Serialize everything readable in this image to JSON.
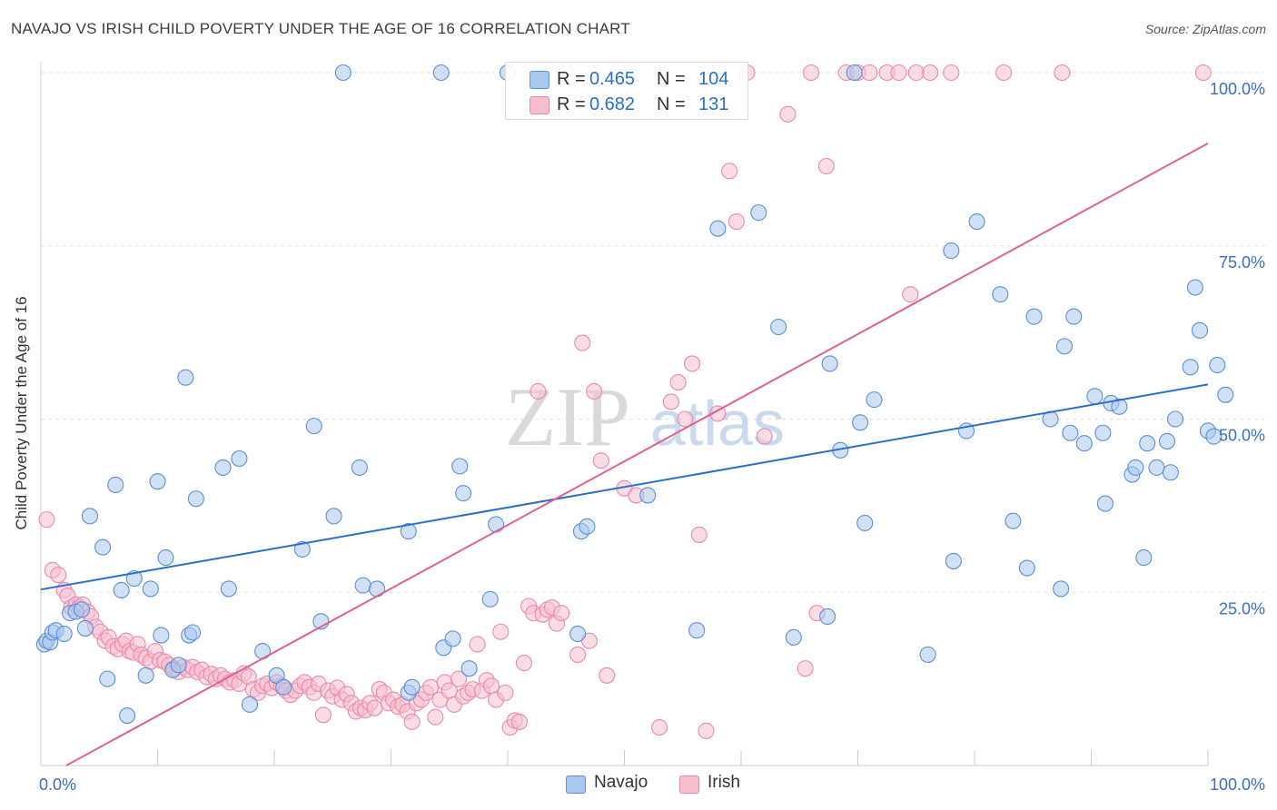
{
  "title": "NAVAJO VS IRISH CHILD POVERTY UNDER THE AGE OF 16 CORRELATION CHART",
  "source": "Source: ZipAtlas.com",
  "watermark": {
    "zip": "ZIP",
    "atlas": "atlas"
  },
  "legend": {
    "navajo": {
      "r_label": "R =",
      "r_value": "0.465",
      "n_label": "N =",
      "n_value": "104"
    },
    "irish": {
      "r_label": "R =",
      "r_value": "0.682",
      "n_label": "N =",
      "n_value": "131"
    }
  },
  "bottom_legend": {
    "navajo": "Navajo",
    "irish": "Irish"
  },
  "colors": {
    "navajo_fill": "#a9c8ef",
    "navajo_stroke": "#5b8fd6",
    "navajo_line": "#2b6fcc",
    "irish_fill": "#f6bfd0",
    "irish_stroke": "#ea8aa8",
    "irish_line": "#e0628e",
    "tick_text": "#3a6fc4",
    "grid": "#e2e2e2"
  },
  "chart_data": {
    "type": "scatter",
    "title": "NAVAJO VS IRISH CHILD POVERTY UNDER THE AGE OF 16 CORRELATION CHART",
    "xlabel": "",
    "ylabel": "Child Poverty Under the Age of 16",
    "xlim": [
      0,
      100
    ],
    "ylim": [
      0,
      100
    ],
    "x_tick_labels": [
      {
        "value": 0,
        "label": "0.0%"
      },
      {
        "value": 100,
        "label": "100.0%"
      }
    ],
    "y_tick_labels": [
      {
        "value": 25,
        "label": "25.0%"
      },
      {
        "value": 50,
        "label": "50.0%"
      },
      {
        "value": 75,
        "label": "75.0%"
      },
      {
        "value": 100,
        "label": "100.0%"
      }
    ],
    "grid": true,
    "legend_position": "top-center",
    "series": [
      {
        "name": "Navajo",
        "trend": {
          "x": [
            0,
            100
          ],
          "y": [
            25.4,
            55.0
          ]
        },
        "points": [
          [
            0.3,
            17.5
          ],
          [
            0.5,
            18.0
          ],
          [
            0.8,
            17.8
          ],
          [
            1.0,
            19.2
          ],
          [
            1.3,
            19.5
          ],
          [
            2.0,
            19.0
          ],
          [
            2.5,
            22.0
          ],
          [
            3.0,
            22.2
          ],
          [
            3.5,
            22.5
          ],
          [
            3.8,
            19.8
          ],
          [
            4.2,
            36.0
          ],
          [
            5.3,
            31.5
          ],
          [
            5.7,
            12.5
          ],
          [
            6.4,
            40.5
          ],
          [
            6.9,
            25.3
          ],
          [
            7.4,
            7.2
          ],
          [
            8.0,
            27.0
          ],
          [
            9.0,
            13.0
          ],
          [
            9.4,
            25.5
          ],
          [
            10.0,
            41.0
          ],
          [
            10.3,
            18.8
          ],
          [
            10.7,
            30.0
          ],
          [
            11.3,
            13.8
          ],
          [
            11.8,
            14.5
          ],
          [
            12.4,
            56.0
          ],
          [
            12.7,
            18.8
          ],
          [
            13.0,
            19.2
          ],
          [
            13.3,
            38.5
          ],
          [
            15.6,
            43.0
          ],
          [
            16.1,
            25.5
          ],
          [
            17.0,
            44.3
          ],
          [
            17.9,
            8.8
          ],
          [
            19.0,
            16.5
          ],
          [
            20.2,
            13.0
          ],
          [
            20.8,
            11.3
          ],
          [
            22.4,
            31.2
          ],
          [
            23.4,
            49.0
          ],
          [
            24.0,
            20.8
          ],
          [
            25.1,
            36.0
          ],
          [
            25.9,
            100
          ],
          [
            27.3,
            43.0
          ],
          [
            27.6,
            26.0
          ],
          [
            28.8,
            25.5
          ],
          [
            31.5,
            10.5
          ],
          [
            31.8,
            11.3
          ],
          [
            31.5,
            33.8
          ],
          [
            34.3,
            100
          ],
          [
            34.5,
            17.0
          ],
          [
            35.3,
            18.3
          ],
          [
            35.9,
            43.2
          ],
          [
            36.2,
            39.3
          ],
          [
            36.7,
            14.0
          ],
          [
            38.5,
            24.0
          ],
          [
            39.0,
            34.8
          ],
          [
            40.0,
            100
          ],
          [
            46.0,
            19.0
          ],
          [
            46.3,
            33.8
          ],
          [
            46.8,
            34.5
          ],
          [
            52.0,
            39.0
          ],
          [
            56.2,
            19.5
          ],
          [
            58.0,
            77.5
          ],
          [
            61.5,
            79.8
          ],
          [
            63.2,
            63.3
          ],
          [
            64.5,
            18.5
          ],
          [
            67.4,
            21.5
          ],
          [
            67.6,
            58.0
          ],
          [
            68.5,
            45.5
          ],
          [
            69.7,
            100
          ],
          [
            70.2,
            49.5
          ],
          [
            70.6,
            35.0
          ],
          [
            71.4,
            52.8
          ],
          [
            76.0,
            16.0
          ],
          [
            78.0,
            74.3
          ],
          [
            78.2,
            29.5
          ],
          [
            79.3,
            48.3
          ],
          [
            80.2,
            78.5
          ],
          [
            82.2,
            68.0
          ],
          [
            83.3,
            35.3
          ],
          [
            84.5,
            28.5
          ],
          [
            85.1,
            64.8
          ],
          [
            86.5,
            50.0
          ],
          [
            87.4,
            25.5
          ],
          [
            87.7,
            60.5
          ],
          [
            88.2,
            48.0
          ],
          [
            88.5,
            64.8
          ],
          [
            89.4,
            46.5
          ],
          [
            90.3,
            53.3
          ],
          [
            91.0,
            48.0
          ],
          [
            91.2,
            37.8
          ],
          [
            91.7,
            52.3
          ],
          [
            92.4,
            51.8
          ],
          [
            93.5,
            42.0
          ],
          [
            93.8,
            43.0
          ],
          [
            94.5,
            30.0
          ],
          [
            94.8,
            46.5
          ],
          [
            95.6,
            43.0
          ],
          [
            96.5,
            46.8
          ],
          [
            96.8,
            42.3
          ],
          [
            97.2,
            50.0
          ],
          [
            98.5,
            57.5
          ],
          [
            98.9,
            69.0
          ],
          [
            99.3,
            62.8
          ],
          [
            100.0,
            48.3
          ],
          [
            100.5,
            47.5
          ],
          [
            100.8,
            57.8
          ],
          [
            101.5,
            53.5
          ]
        ]
      },
      {
        "name": "Irish",
        "trend": {
          "x": [
            0,
            100
          ],
          "y": [
            -2.0,
            89.8
          ]
        },
        "points": [
          [
            0.5,
            35.5
          ],
          [
            1.0,
            28.2
          ],
          [
            1.5,
            27.5
          ],
          [
            2.0,
            25.3
          ],
          [
            2.3,
            24.5
          ],
          [
            2.6,
            22.8
          ],
          [
            3.0,
            23.2
          ],
          [
            3.3,
            22.8
          ],
          [
            3.6,
            23.2
          ],
          [
            4.0,
            22.2
          ],
          [
            4.3,
            21.5
          ],
          [
            4.7,
            20.0
          ],
          [
            5.1,
            19.3
          ],
          [
            5.5,
            18.0
          ],
          [
            5.8,
            18.5
          ],
          [
            6.2,
            17.2
          ],
          [
            6.6,
            16.8
          ],
          [
            7.0,
            17.5
          ],
          [
            7.3,
            18.0
          ],
          [
            7.6,
            16.5
          ],
          [
            7.9,
            16.3
          ],
          [
            8.3,
            17.5
          ],
          [
            8.6,
            16.0
          ],
          [
            9.0,
            15.5
          ],
          [
            9.4,
            15.0
          ],
          [
            9.8,
            16.5
          ],
          [
            10.2,
            15.2
          ],
          [
            10.6,
            15.0
          ],
          [
            11.0,
            14.5
          ],
          [
            11.4,
            14.0
          ],
          [
            11.8,
            13.5
          ],
          [
            12.2,
            14.2
          ],
          [
            12.6,
            13.8
          ],
          [
            13.0,
            14.2
          ],
          [
            13.4,
            13.5
          ],
          [
            13.8,
            13.8
          ],
          [
            14.2,
            12.8
          ],
          [
            14.6,
            13.2
          ],
          [
            15.0,
            12.5
          ],
          [
            15.4,
            13.0
          ],
          [
            15.8,
            12.5
          ],
          [
            16.2,
            12.0
          ],
          [
            16.6,
            12.3
          ],
          [
            17.0,
            11.8
          ],
          [
            17.4,
            13.3
          ],
          [
            17.8,
            12.8
          ],
          [
            18.2,
            11.0
          ],
          [
            18.6,
            10.5
          ],
          [
            19.0,
            11.5
          ],
          [
            19.4,
            11.8
          ],
          [
            19.8,
            11.2
          ],
          [
            20.2,
            12.0
          ],
          [
            20.6,
            11.5
          ],
          [
            21.0,
            10.8
          ],
          [
            21.4,
            10.2
          ],
          [
            21.8,
            10.8
          ],
          [
            22.2,
            11.5
          ],
          [
            22.6,
            12.0
          ],
          [
            23.0,
            11.3
          ],
          [
            23.4,
            10.5
          ],
          [
            23.8,
            11.8
          ],
          [
            24.2,
            7.3
          ],
          [
            24.6,
            10.8
          ],
          [
            25.0,
            10.0
          ],
          [
            25.4,
            11.2
          ],
          [
            25.8,
            9.5
          ],
          [
            26.2,
            10.3
          ],
          [
            26.6,
            9.0
          ],
          [
            27.0,
            7.8
          ],
          [
            27.4,
            8.3
          ],
          [
            27.8,
            8.0
          ],
          [
            28.2,
            9.0
          ],
          [
            28.6,
            8.3
          ],
          [
            29.0,
            11.0
          ],
          [
            29.4,
            10.5
          ],
          [
            29.8,
            9.0
          ],
          [
            30.2,
            9.5
          ],
          [
            30.6,
            8.5
          ],
          [
            31.0,
            8.8
          ],
          [
            31.4,
            7.8
          ],
          [
            31.8,
            6.3
          ],
          [
            32.2,
            9.0
          ],
          [
            32.6,
            9.5
          ],
          [
            33.0,
            10.5
          ],
          [
            33.4,
            11.3
          ],
          [
            33.8,
            7.0
          ],
          [
            34.2,
            9.5
          ],
          [
            34.6,
            12.0
          ],
          [
            35.0,
            10.8
          ],
          [
            35.4,
            8.8
          ],
          [
            35.8,
            12.5
          ],
          [
            36.2,
            10.0
          ],
          [
            36.6,
            10.5
          ],
          [
            37.0,
            11.0
          ],
          [
            37.4,
            17.5
          ],
          [
            37.8,
            10.8
          ],
          [
            38.2,
            12.3
          ],
          [
            38.6,
            11.5
          ],
          [
            39.0,
            9.5
          ],
          [
            39.4,
            19.3
          ],
          [
            39.8,
            10.5
          ],
          [
            40.2,
            5.5
          ],
          [
            40.6,
            6.5
          ],
          [
            41.0,
            6.3
          ],
          [
            41.4,
            14.8
          ],
          [
            41.8,
            23.0
          ],
          [
            42.2,
            22.0
          ],
          [
            42.6,
            54.0
          ],
          [
            43.0,
            21.8
          ],
          [
            43.4,
            22.5
          ],
          [
            43.8,
            22.8
          ],
          [
            44.2,
            20.5
          ],
          [
            44.6,
            22.0
          ],
          [
            45.0,
            100
          ],
          [
            46.0,
            16.0
          ],
          [
            46.4,
            61.0
          ],
          [
            47.0,
            18.0
          ],
          [
            47.4,
            54.0
          ],
          [
            48.0,
            44.0
          ],
          [
            48.5,
            13.0
          ],
          [
            50.0,
            40.0
          ],
          [
            51.0,
            39.0
          ],
          [
            53.0,
            5.5
          ],
          [
            54.0,
            52.5
          ],
          [
            54.6,
            55.3
          ],
          [
            55.2,
            50.0
          ],
          [
            55.8,
            58.0
          ],
          [
            56.4,
            33.3
          ],
          [
            57.0,
            5.0
          ],
          [
            58.0,
            50.8
          ],
          [
            59.0,
            85.8
          ],
          [
            59.6,
            78.5
          ],
          [
            60.5,
            100
          ],
          [
            62.0,
            47.5
          ],
          [
            64.0,
            94.0
          ],
          [
            65.5,
            14.0
          ],
          [
            66.0,
            100
          ],
          [
            66.5,
            22.0
          ],
          [
            67.3,
            86.5
          ],
          [
            69.0,
            100
          ],
          [
            70.0,
            100
          ],
          [
            71.0,
            100
          ],
          [
            72.5,
            100
          ],
          [
            73.5,
            100
          ],
          [
            74.5,
            68.0
          ],
          [
            75.0,
            100
          ],
          [
            76.2,
            100
          ],
          [
            78.0,
            100
          ],
          [
            82.5,
            100
          ],
          [
            87.5,
            100
          ],
          [
            99.6,
            100
          ]
        ]
      }
    ]
  }
}
